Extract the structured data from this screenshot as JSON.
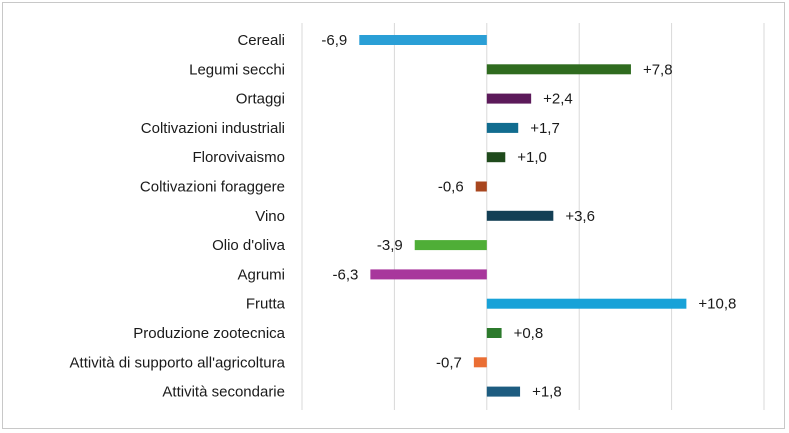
{
  "chart_data": {
    "type": "bar",
    "orientation": "horizontal",
    "categories": [
      "Cereali",
      "Legumi secchi",
      "Ortaggi",
      "Coltivazioni industriali",
      "Florovivaismo",
      "Coltivazioni foraggere",
      "Vino",
      "Olio d'oliva",
      "Agrumi",
      "Frutta",
      "Produzione zootecnica",
      "Attività di supporto all'agricoltura",
      "Attività secondarie"
    ],
    "values": [
      -6.9,
      7.8,
      2.4,
      1.7,
      1.0,
      -0.6,
      3.6,
      -3.9,
      -6.3,
      10.8,
      0.8,
      -0.7,
      1.8
    ],
    "value_labels": [
      "-6,9",
      "+7,8",
      "+2,4",
      "+1,7",
      "+1,0",
      "-0,6",
      "+3,6",
      "-3,9",
      "-6,3",
      "+10,8",
      "+0,8",
      "-0,7",
      "+1,8"
    ],
    "colors": [
      "#2a9fd6",
      "#2f6b1f",
      "#5c1a5a",
      "#116c8f",
      "#1f4a1c",
      "#a8461e",
      "#133f55",
      "#4fae37",
      "#a8379c",
      "#18a2d8",
      "#2c7a2c",
      "#ea6e34",
      "#1d5c80"
    ],
    "xlim": [
      -10,
      15
    ],
    "grid_x": [
      -10,
      -5,
      0,
      5,
      10,
      15
    ],
    "grid": true,
    "legend": "none",
    "title": "",
    "xlabel": "",
    "ylabel": ""
  }
}
